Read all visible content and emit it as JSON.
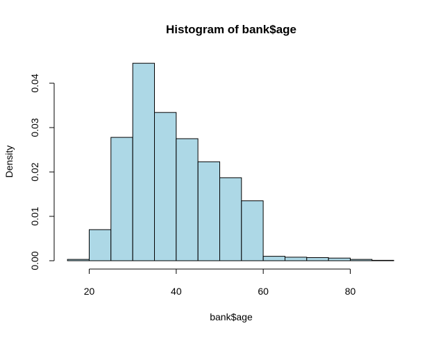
{
  "chart_data": {
    "type": "bar",
    "title": "Histogram of bank$age",
    "xlabel": "bank$age",
    "ylabel": "Density",
    "x_ticks": [
      20,
      40,
      60,
      80
    ],
    "y_ticks": [
      0.0,
      0.01,
      0.02,
      0.03,
      0.04
    ],
    "y_tick_labels": [
      "0.00",
      "0.01",
      "0.02",
      "0.03",
      "0.04"
    ],
    "xlim": [
      15,
      90
    ],
    "ylim": [
      0,
      0.0445
    ],
    "bar_color": "#ADD8E6",
    "bins": [
      {
        "start": 15,
        "end": 20,
        "density": 0.0003
      },
      {
        "start": 20,
        "end": 25,
        "density": 0.007
      },
      {
        "start": 25,
        "end": 30,
        "density": 0.0278
      },
      {
        "start": 30,
        "end": 35,
        "density": 0.0445
      },
      {
        "start": 35,
        "end": 40,
        "density": 0.0334
      },
      {
        "start": 40,
        "end": 45,
        "density": 0.0275
      },
      {
        "start": 45,
        "end": 50,
        "density": 0.0223
      },
      {
        "start": 50,
        "end": 55,
        "density": 0.0187
      },
      {
        "start": 55,
        "end": 60,
        "density": 0.0135
      },
      {
        "start": 60,
        "end": 65,
        "density": 0.001
      },
      {
        "start": 65,
        "end": 70,
        "density": 0.0008
      },
      {
        "start": 70,
        "end": 75,
        "density": 0.0007
      },
      {
        "start": 75,
        "end": 80,
        "density": 0.0006
      },
      {
        "start": 80,
        "end": 85,
        "density": 0.0003
      },
      {
        "start": 85,
        "end": 90,
        "density": 0.0001
      }
    ]
  }
}
